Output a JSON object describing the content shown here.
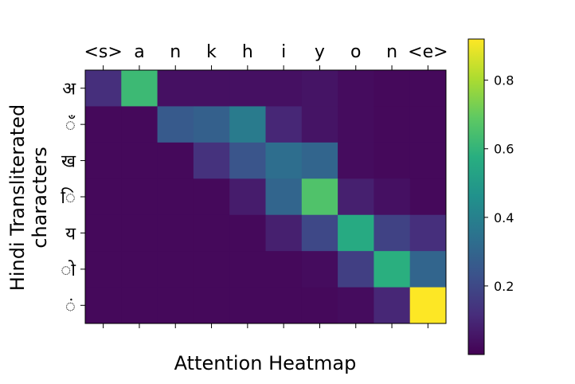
{
  "chart_data": {
    "type": "heatmap",
    "title": "",
    "xlabel": "Attention Heatmap",
    "ylabel": "Hindi Transliterated characters",
    "ylabel_lines": [
      "Hindi Transliterated",
      "characters"
    ],
    "x_categories": [
      "<s>",
      "a",
      "n",
      "k",
      "h",
      "i",
      "y",
      "o",
      "n",
      "<e>"
    ],
    "y_categories": [
      "अ",
      "ँ",
      "ख",
      "ि",
      "य",
      "ो",
      "ं"
    ],
    "values": [
      [
        0.12,
        0.62,
        0.04,
        0.04,
        0.04,
        0.04,
        0.05,
        0.03,
        0.02,
        0.02
      ],
      [
        0.02,
        0.02,
        0.26,
        0.28,
        0.38,
        0.1,
        0.05,
        0.03,
        0.02,
        0.02
      ],
      [
        0.02,
        0.02,
        0.02,
        0.13,
        0.24,
        0.33,
        0.3,
        0.03,
        0.02,
        0.02
      ],
      [
        0.02,
        0.02,
        0.02,
        0.02,
        0.07,
        0.3,
        0.66,
        0.08,
        0.04,
        0.02
      ],
      [
        0.02,
        0.02,
        0.02,
        0.02,
        0.02,
        0.08,
        0.2,
        0.56,
        0.18,
        0.12
      ],
      [
        0.02,
        0.02,
        0.02,
        0.02,
        0.02,
        0.02,
        0.03,
        0.17,
        0.58,
        0.3
      ],
      [
        0.02,
        0.02,
        0.02,
        0.02,
        0.02,
        0.02,
        0.02,
        0.03,
        0.1,
        0.93
      ]
    ],
    "colormap": "viridis",
    "colorbar": {
      "range": [
        0.0,
        0.92
      ],
      "ticks": [
        "0.2",
        "0.4",
        "0.6",
        "0.8"
      ],
      "tick_values": [
        0.2,
        0.4,
        0.6,
        0.8
      ]
    },
    "grid": false,
    "x_tick_position": "top"
  }
}
